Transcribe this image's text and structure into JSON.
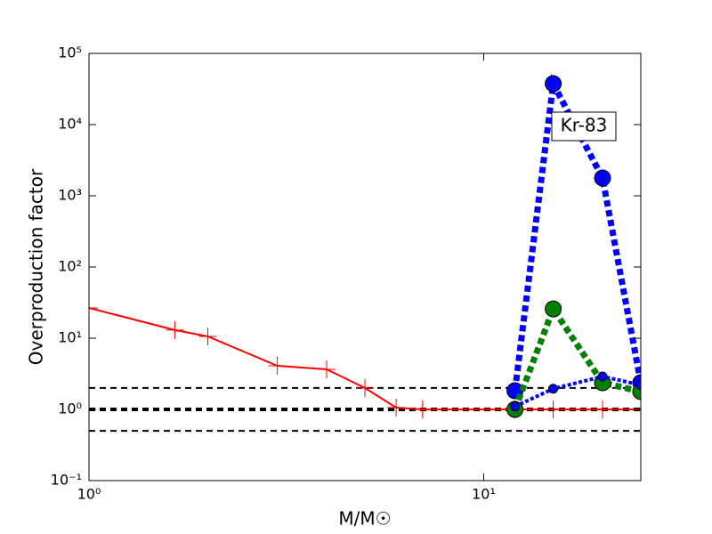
{
  "chart_data": {
    "type": "line",
    "xlabel": "M/M☉",
    "ylabel": "Overproduction factor",
    "annotation": "Kr-83",
    "xscale": "log",
    "yscale": "log",
    "xlim": [
      1,
      25
    ],
    "ylim": [
      0.1,
      100000
    ],
    "xticks": [
      {
        "value": 1,
        "label": "10⁰"
      },
      {
        "value": 10,
        "label": "10¹"
      }
    ],
    "yticks": [
      {
        "value": 0.1,
        "label": "10⁻¹"
      },
      {
        "value": 1,
        "label": "10⁰"
      },
      {
        "value": 10,
        "label": "10¹"
      },
      {
        "value": 100,
        "label": "10²"
      },
      {
        "value": 1000,
        "label": "10³"
      },
      {
        "value": 10000,
        "label": "10⁴"
      },
      {
        "value": 100000,
        "label": "10⁵"
      }
    ],
    "hlines": [
      {
        "y": 2,
        "color": "#000000",
        "width": 2
      },
      {
        "y": 1,
        "color": "#000000",
        "width": 4
      },
      {
        "y": 0.5,
        "color": "#000000",
        "width": 2
      }
    ],
    "series": [
      {
        "color": "#ff0000",
        "linestyle": "solid",
        "linewidth": 2,
        "marker": "plus",
        "markersize": 10,
        "x": [
          1,
          1.65,
          2,
          3,
          4,
          5,
          6,
          7,
          12,
          15,
          20,
          25
        ],
        "values": [
          26.6,
          13,
          10.6,
          4.1,
          3.65,
          2.0,
          1.06,
          1.0,
          1.0,
          1.0,
          1.0,
          1.0
        ]
      },
      {
        "color": "#0000ff",
        "linestyle": "dotted",
        "linewidth": 7,
        "marker": "circle",
        "markersize": 9,
        "x": [
          12,
          15,
          20,
          25
        ],
        "values": [
          1.83,
          37600,
          1780,
          2.37
        ]
      },
      {
        "color": "#008000",
        "linestyle": "dotted",
        "linewidth": 7,
        "marker": "circle",
        "markersize": 9,
        "x": [
          12,
          15,
          20,
          25
        ],
        "values": [
          1.0,
          25.8,
          2.37,
          1.78
        ]
      },
      {
        "color": "#0000ff",
        "linestyle": "dotted",
        "linewidth": 4,
        "marker": "circle",
        "markersize": 5,
        "x": [
          12,
          15,
          20,
          25
        ],
        "values": [
          1.1,
          1.95,
          2.9,
          2.2
        ]
      }
    ]
  }
}
